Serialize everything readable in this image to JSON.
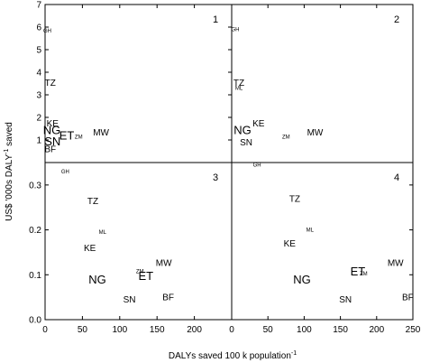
{
  "chart_data": {
    "type": "scatter",
    "xlabel": "DALYs saved 100 k population",
    "xlabel_exp": "-1",
    "ylabel": "US$ '000s DALY",
    "ylabel_exp": "-1",
    "ylabel_suffix": " saved",
    "panels": [
      {
        "number": "1",
        "xlim": [
          0,
          250
        ],
        "ylim": [
          0,
          7
        ],
        "yticks": [
          "0",
          "1",
          "2",
          "3",
          "4",
          "5",
          "6",
          "7"
        ],
        "points": [
          {
            "label": "GH",
            "x": 3,
            "y": 5.85,
            "size": "xs"
          },
          {
            "label": "TZ",
            "x": 7,
            "y": 3.55,
            "size": "m"
          },
          {
            "label": "KE",
            "x": 10,
            "y": 1.75,
            "size": "m"
          },
          {
            "label": "NG",
            "x": 9,
            "y": 1.45,
            "size": "l"
          },
          {
            "label": "ET",
            "x": 29,
            "y": 1.2,
            "size": "l"
          },
          {
            "label": "ZM",
            "x": 45,
            "y": 1.15,
            "size": "xs"
          },
          {
            "label": "MW",
            "x": 75,
            "y": 1.35,
            "size": "m"
          },
          {
            "label": "SN",
            "x": 10,
            "y": 0.95,
            "size": "l"
          },
          {
            "label": "BF",
            "x": 7,
            "y": 0.6,
            "size": "m"
          }
        ]
      },
      {
        "number": "2",
        "xlim": [
          0,
          250
        ],
        "ylim": [
          0,
          7
        ],
        "points": [
          {
            "label": "GH",
            "x": 5,
            "y": 5.9,
            "size": "xs"
          },
          {
            "label": "TZ",
            "x": 10,
            "y": 3.55,
            "size": "m"
          },
          {
            "label": "ML",
            "x": 10,
            "y": 3.3,
            "size": "xs"
          },
          {
            "label": "NG",
            "x": 15,
            "y": 1.45,
            "size": "l"
          },
          {
            "label": "KE",
            "x": 37,
            "y": 1.75,
            "size": "m"
          },
          {
            "label": "SN",
            "x": 20,
            "y": 0.9,
            "size": "m"
          },
          {
            "label": "ZM",
            "x": 75,
            "y": 1.15,
            "size": "xs"
          },
          {
            "label": "MW",
            "x": 115,
            "y": 1.35,
            "size": "m"
          }
        ]
      },
      {
        "number": "3",
        "xlim": [
          0,
          250
        ],
        "ylim": [
          0,
          0.35
        ],
        "yticks": [
          "0.0",
          "0.1",
          "0.2",
          "0.3"
        ],
        "xticks": [
          "0",
          "50",
          "100",
          "150",
          "200"
        ],
        "points": [
          {
            "label": "GH",
            "x": 27,
            "y": 0.33,
            "size": "xs"
          },
          {
            "label": "TZ",
            "x": 64,
            "y": 0.265,
            "size": "m"
          },
          {
            "label": "ML",
            "x": 77,
            "y": 0.195,
            "size": "xs"
          },
          {
            "label": "KE",
            "x": 60,
            "y": 0.16,
            "size": "m"
          },
          {
            "label": "MW",
            "x": 159,
            "y": 0.127,
            "size": "m"
          },
          {
            "label": "ZM",
            "x": 127,
            "y": 0.108,
            "size": "xs"
          },
          {
            "label": "ET",
            "x": 135,
            "y": 0.098,
            "size": "l"
          },
          {
            "label": "NG",
            "x": 70,
            "y": 0.09,
            "size": "l"
          },
          {
            "label": "SN",
            "x": 113,
            "y": 0.045,
            "size": "m"
          },
          {
            "label": "BF",
            "x": 165,
            "y": 0.05,
            "size": "m"
          }
        ]
      },
      {
        "number": "4",
        "xlim": [
          0,
          250
        ],
        "ylim": [
          0,
          0.35
        ],
        "xticks": [
          "0",
          "50",
          "100",
          "150",
          "200",
          "250"
        ],
        "points": [
          {
            "label": "GH",
            "x": 35,
            "y": 0.345,
            "size": "xs"
          },
          {
            "label": "TZ",
            "x": 87,
            "y": 0.27,
            "size": "m"
          },
          {
            "label": "ML",
            "x": 108,
            "y": 0.2,
            "size": "xs"
          },
          {
            "label": "KE",
            "x": 80,
            "y": 0.17,
            "size": "m"
          },
          {
            "label": "MW",
            "x": 226,
            "y": 0.127,
            "size": "m"
          },
          {
            "label": "ET",
            "x": 174,
            "y": 0.108,
            "size": "l"
          },
          {
            "label": "ZM",
            "x": 182,
            "y": 0.103,
            "size": "xs"
          },
          {
            "label": "NG",
            "x": 97,
            "y": 0.09,
            "size": "l"
          },
          {
            "label": "SN",
            "x": 157,
            "y": 0.045,
            "size": "m"
          },
          {
            "label": "BF",
            "x": 243,
            "y": 0.05,
            "size": "m"
          }
        ]
      }
    ]
  }
}
